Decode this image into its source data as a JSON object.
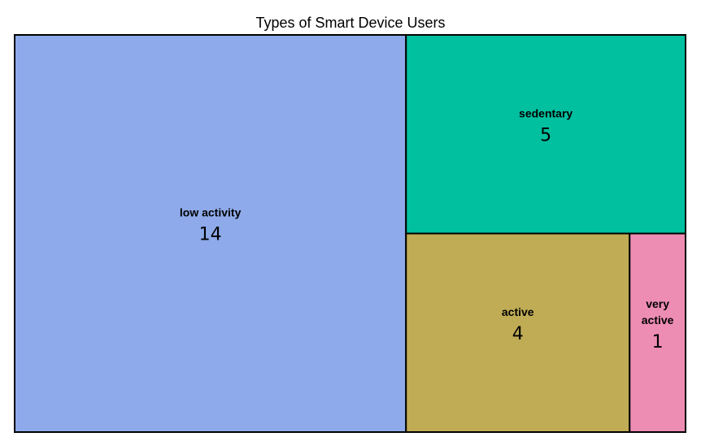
{
  "chart_data": {
    "type": "treemap",
    "title": "Types of Smart Device Users",
    "categories": [
      "low activity",
      "sedentary",
      "active",
      "very active"
    ],
    "values": [
      14,
      5,
      4,
      1
    ],
    "colors": {
      "low activity": "#8eaaea",
      "sedentary": "#00c09f",
      "active": "#bfac55",
      "very active": "#ed8db4"
    },
    "grid": false,
    "legend": "none"
  }
}
